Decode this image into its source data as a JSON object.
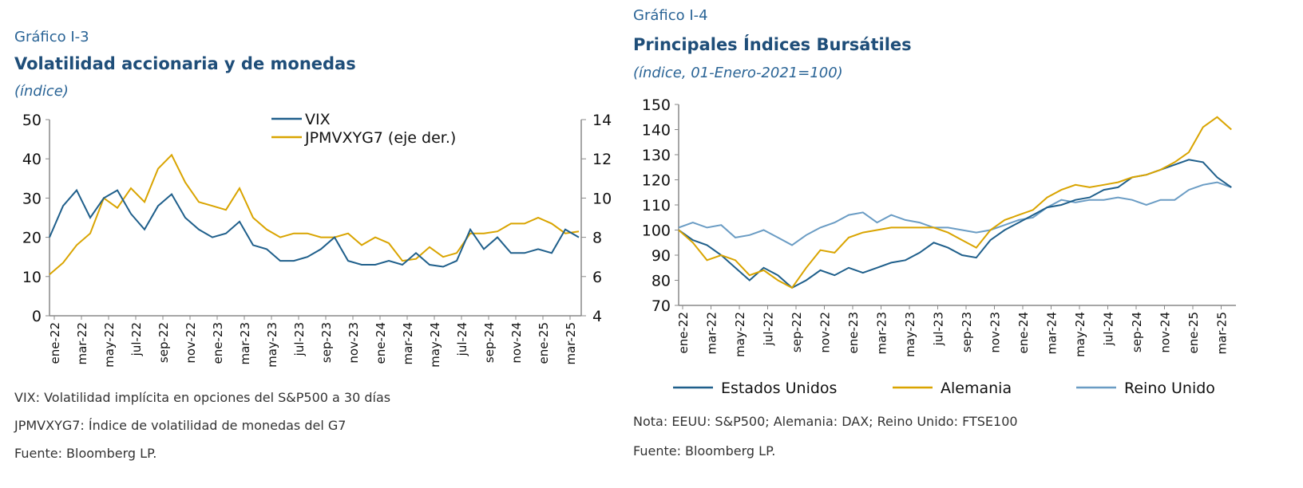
{
  "colors": {
    "vix": "#1f5f8b",
    "jpm": "#d9a400",
    "eeuu": "#1f5f8b",
    "alemania": "#d9a400",
    "reino": "#6a9cc4"
  },
  "left": {
    "label": "Gráfico I-3",
    "title": "Volatilidad accionaria y de monedas",
    "subtitle": "(índice)",
    "notes": [
      "VIX: Volatilidad implícita en opciones del S&P500 a 30 días",
      "JPMVXYG7: Índice de volatilidad de monedas del G7",
      "Fuente: Bloomberg LP."
    ]
  },
  "right": {
    "label": "Gráfico I-4",
    "title": "Principales Índices Bursátiles",
    "subtitle": "(índice, 01-Enero-2021=100)",
    "notes": [
      "Nota: EEUU: S&P500; Alemania: DAX; Reino Unido: FTSE100",
      "Fuente: Bloomberg LP."
    ]
  },
  "chart_data": [
    {
      "type": "line",
      "ylim": [
        0,
        50
      ],
      "y2lim": [
        4,
        14
      ],
      "yticks": [
        "0",
        "10",
        "20",
        "30",
        "40",
        "50"
      ],
      "y2ticks": [
        "4",
        "6",
        "8",
        "10",
        "12",
        "14"
      ],
      "xticks": [
        "ene-22",
        "mar-22",
        "may-22",
        "jul-22",
        "sep-22",
        "nov-22",
        "ene-23",
        "mar-23",
        "may-23",
        "jul-23",
        "sep-23",
        "nov-23",
        "ene-24",
        "mar-24",
        "may-24",
        "jul-24",
        "sep-24",
        "nov-24",
        "ene-25",
        "mar-25"
      ],
      "legend": "top-center",
      "series": [
        {
          "name": "VIX",
          "axis": "left",
          "values": [
            20,
            28,
            32,
            25,
            30,
            32,
            26,
            22,
            28,
            31,
            25,
            22,
            20,
            21,
            24,
            18,
            17,
            14,
            14,
            15,
            17,
            20,
            14,
            13,
            13,
            14,
            13,
            16,
            13,
            12.5,
            14,
            22,
            17,
            20,
            16,
            16,
            17,
            16,
            22,
            20
          ]
        },
        {
          "name": "JPMVXYG7 (eje der.)",
          "axis": "right",
          "values": [
            6.1,
            6.7,
            7.6,
            8.2,
            10,
            9.5,
            10.5,
            9.8,
            11.5,
            12.2,
            10.8,
            9.8,
            9.6,
            9.4,
            10.5,
            9,
            8.4,
            8,
            8.2,
            8.2,
            8,
            8,
            8.2,
            7.6,
            8,
            7.7,
            6.8,
            6.9,
            7.5,
            7,
            7.2,
            8.2,
            8.2,
            8.3,
            8.7,
            8.7,
            9,
            8.7,
            8.2,
            8.3
          ]
        }
      ]
    },
    {
      "type": "line",
      "ylim": [
        70,
        150
      ],
      "yticks": [
        "70",
        "80",
        "90",
        "100",
        "110",
        "120",
        "130",
        "140",
        "150"
      ],
      "xticks": [
        "ene-22",
        "mar-22",
        "may-22",
        "jul-22",
        "sep-22",
        "nov-22",
        "ene-23",
        "mar-23",
        "may-23",
        "jul-23",
        "sep-23",
        "nov-23",
        "ene-24",
        "mar-24",
        "may-24",
        "jul-24",
        "sep-24",
        "nov-24",
        "ene-25",
        "mar-25"
      ],
      "legend": "bottom",
      "series": [
        {
          "name": "Estados Unidos",
          "values": [
            100,
            96,
            94,
            90,
            85,
            80,
            85,
            82,
            77,
            80,
            84,
            82,
            85,
            83,
            85,
            87,
            88,
            91,
            95,
            93,
            90,
            89,
            96,
            100,
            103,
            106,
            109,
            110,
            112,
            113,
            116,
            117,
            121,
            122,
            124,
            126,
            128,
            127,
            121,
            117
          ]
        },
        {
          "name": "Alemania",
          "values": [
            100,
            95,
            88,
            90,
            88,
            82,
            84,
            80,
            77,
            85,
            92,
            91,
            97,
            99,
            100,
            101,
            101,
            101,
            101,
            99,
            96,
            93,
            100,
            104,
            106,
            108,
            113,
            116,
            118,
            117,
            118,
            119,
            121,
            122,
            124,
            127,
            131,
            141,
            145,
            140
          ]
        },
        {
          "name": "Reino Unido",
          "values": [
            101,
            103,
            101,
            102,
            97,
            98,
            100,
            97,
            94,
            98,
            101,
            103,
            106,
            107,
            103,
            106,
            104,
            103,
            101,
            101,
            100,
            99,
            100,
            102,
            104,
            105,
            109,
            112,
            111,
            112,
            112,
            113,
            112,
            110,
            112,
            112,
            116,
            118,
            119,
            117
          ]
        }
      ]
    }
  ]
}
